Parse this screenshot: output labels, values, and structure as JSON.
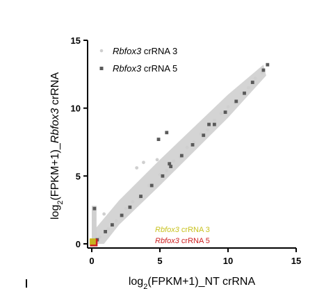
{
  "chart_data": {
    "type": "scatter",
    "xlabel": {
      "prefix": "log",
      "sub": "2",
      "rest": "(FPKM+1)_NT crRNA"
    },
    "ylabel": {
      "prefix": "log",
      "sub": "2",
      "rest1": "(FPKM+1)_",
      "italic": "Rbfox3",
      "rest2": " crRNA"
    },
    "xlim": [
      0,
      15
    ],
    "ylim": [
      0,
      15
    ],
    "xticks": [
      0,
      5,
      10,
      15
    ],
    "yticks": [
      0,
      5,
      10,
      15
    ],
    "legend_placement": "top-left",
    "series": [
      {
        "name_italic": "Rbfox3",
        "name_rest": " crRNA 3",
        "color": "#cfcfcf",
        "marker": "circle",
        "points": [
          [
            0.3,
            0.35
          ],
          [
            0.6,
            0.5
          ],
          [
            1.2,
            1.1
          ],
          [
            1.8,
            1.7
          ],
          [
            2.5,
            2.6
          ],
          [
            3.0,
            3.1
          ],
          [
            3.5,
            3.4
          ],
          [
            4.2,
            4.3
          ],
          [
            5.0,
            5.1
          ],
          [
            5.5,
            5.4
          ],
          [
            6.0,
            6.1
          ],
          [
            6.5,
            6.4
          ],
          [
            7.0,
            7.1
          ],
          [
            7.5,
            7.5
          ],
          [
            8.0,
            8.1
          ],
          [
            8.5,
            8.4
          ],
          [
            9.0,
            9.1
          ],
          [
            9.5,
            9.6
          ],
          [
            10.0,
            10.1
          ],
          [
            10.5,
            10.4
          ],
          [
            11.0,
            11.1
          ],
          [
            11.5,
            11.5
          ],
          [
            12.0,
            12.2
          ],
          [
            12.5,
            12.6
          ],
          [
            3.3,
            5.6
          ],
          [
            3.8,
            6.0
          ],
          [
            4.8,
            6.2
          ],
          [
            0.2,
            2.5
          ],
          [
            0.2,
            1.8
          ],
          [
            0.9,
            2.2
          ]
        ]
      },
      {
        "name_italic": "Rbfox3",
        "name_rest": " crRNA 5",
        "color": "#5a5a5a",
        "marker": "square",
        "points": [
          [
            0.4,
            0.3
          ],
          [
            1.0,
            0.9
          ],
          [
            1.5,
            1.4
          ],
          [
            2.2,
            2.1
          ],
          [
            2.8,
            2.7
          ],
          [
            3.6,
            3.5
          ],
          [
            4.4,
            4.3
          ],
          [
            5.2,
            5.0
          ],
          [
            5.8,
            5.7
          ],
          [
            6.6,
            6.5
          ],
          [
            7.4,
            7.3
          ],
          [
            8.2,
            8.0
          ],
          [
            9.0,
            8.8
          ],
          [
            9.8,
            9.7
          ],
          [
            10.6,
            10.5
          ],
          [
            11.2,
            11.1
          ],
          [
            11.8,
            11.9
          ],
          [
            12.6,
            12.8
          ],
          [
            12.9,
            13.2
          ],
          [
            5.5,
            8.2
          ],
          [
            4.9,
            7.7
          ],
          [
            5.7,
            5.9
          ],
          [
            8.6,
            8.8
          ],
          [
            0.2,
            2.6
          ]
        ]
      }
    ],
    "annotations": [
      {
        "italic": "Rbfox3",
        "rest": " crRNA 3",
        "color": "#c8c21e",
        "point": [
          0.12,
          0.12
        ]
      },
      {
        "italic": "Rbfox3",
        "rest": " crRNA 5",
        "color": "#cc1f1f",
        "point": [
          0.12,
          0.12
        ]
      }
    ]
  }
}
